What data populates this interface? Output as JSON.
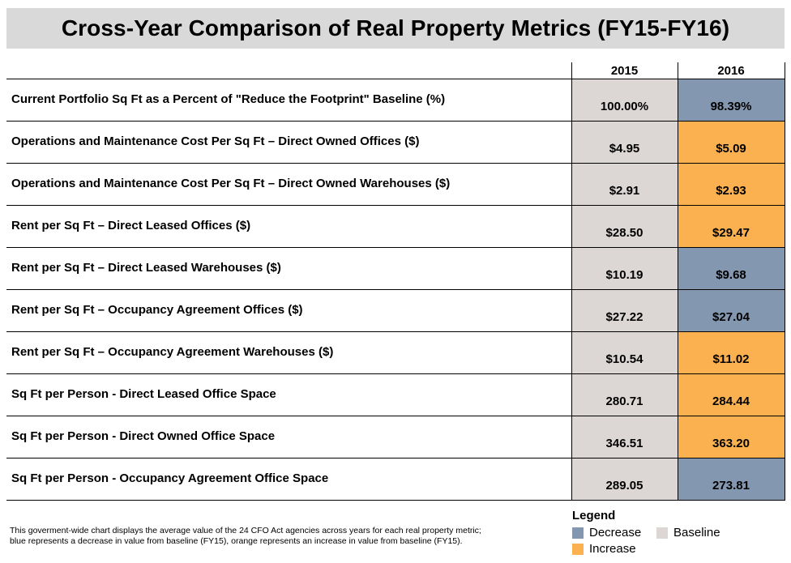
{
  "colors": {
    "decrease": "#8497b0",
    "increase": "#fbb14f",
    "baseline": "#dcd6d5",
    "title_bg": "#d9d9d9"
  },
  "chart_data": {
    "type": "table",
    "title": "Cross-Year Comparison of Real Property Metrics (FY15-FY16)",
    "columns": [
      "2015",
      "2016"
    ],
    "rows": [
      {
        "label": "Current Portfolio Sq Ft as a Percent of \"Reduce the Footprint\" Baseline (%)",
        "values": [
          "100.00%",
          "98.39%"
        ],
        "status": "decrease"
      },
      {
        "label": "Operations and Maintenance Cost Per Sq Ft – Direct Owned Offices ($)",
        "values": [
          "$4.95",
          "$5.09"
        ],
        "status": "increase"
      },
      {
        "label": "Operations and Maintenance Cost Per Sq Ft – Direct Owned Warehouses ($)",
        "values": [
          "$2.91",
          "$2.93"
        ],
        "status": "increase"
      },
      {
        "label": "Rent per Sq Ft – Direct Leased Offices ($)",
        "values": [
          "$28.50",
          "$29.47"
        ],
        "status": "increase"
      },
      {
        "label": "Rent per Sq Ft – Direct Leased Warehouses ($)",
        "values": [
          "$10.19",
          "$9.68"
        ],
        "status": "decrease"
      },
      {
        "label": "Rent per Sq Ft – Occupancy Agreement Offices ($)",
        "values": [
          "$27.22",
          "$27.04"
        ],
        "status": "decrease"
      },
      {
        "label": "Rent per Sq Ft – Occupancy Agreement Warehouses ($)",
        "values": [
          "$10.54",
          "$11.02"
        ],
        "status": "increase"
      },
      {
        "label": "Sq Ft per Person - Direct Leased Office Space",
        "values": [
          "280.71",
          "284.44"
        ],
        "status": "increase"
      },
      {
        "label": "Sq Ft per Person - Direct Owned Office Space",
        "values": [
          "346.51",
          "363.20"
        ],
        "status": "increase"
      },
      {
        "label": "Sq Ft per Person - Occupancy Agreement Office Space",
        "values": [
          "289.05",
          "273.81"
        ],
        "status": "decrease"
      }
    ],
    "note_lines": [
      "This goverment-wide chart displays the average value of the 24 CFO Act agencies across years for each real property metric;",
      "blue represents a decrease in value from baseline (FY15), orange represents an increase in value from baseline (FY15)."
    ],
    "legend": {
      "title": "Legend",
      "decrease": "Decrease",
      "baseline": "Baseline",
      "increase": "Increase"
    }
  }
}
